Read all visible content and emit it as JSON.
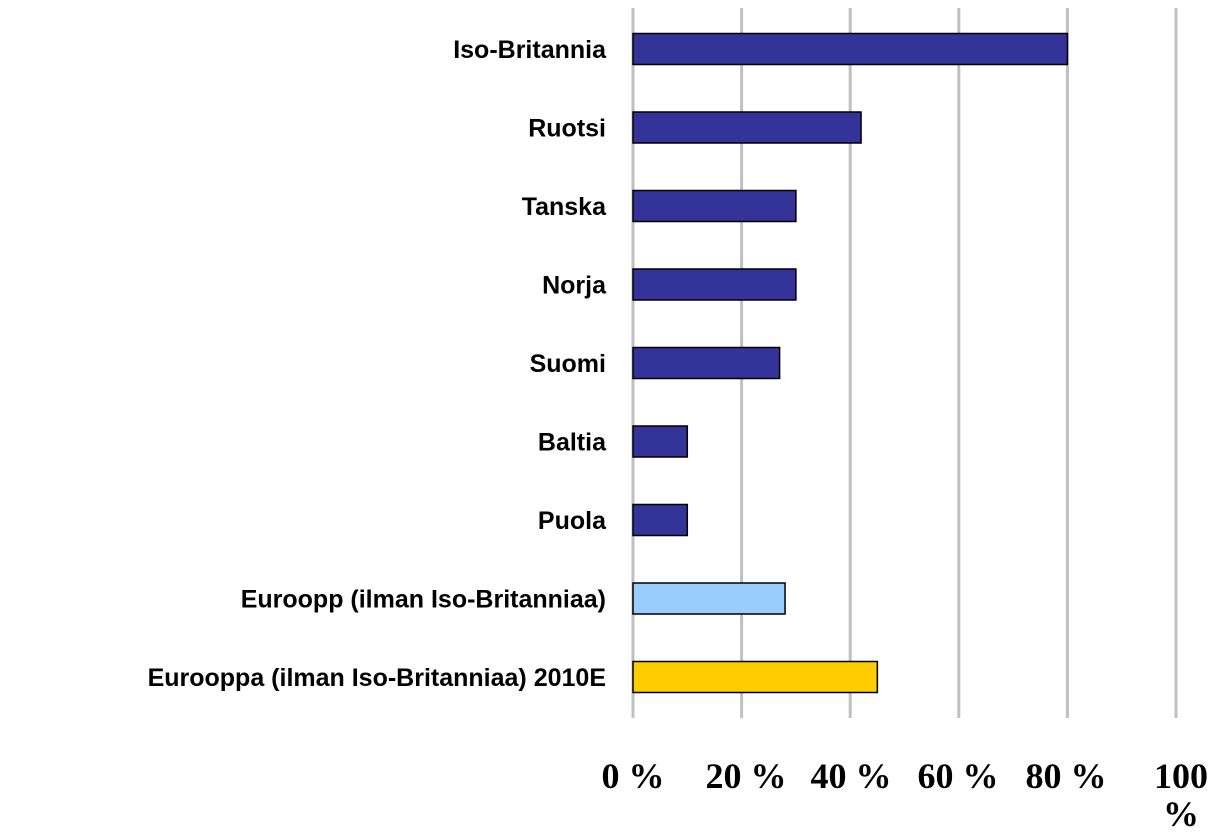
{
  "chart_data": {
    "type": "bar",
    "orientation": "horizontal",
    "title": "",
    "xlabel": "",
    "ylabel": "",
    "categories": [
      "Iso-Britannia",
      "Ruotsi",
      "Tanska",
      "Norja",
      "Suomi",
      "Baltia",
      "Puola",
      "Euroopp (ilman Iso-Britanniaa)",
      "Eurooppa (ilman Iso-Britanniaa) 2010E"
    ],
    "values": [
      80,
      42,
      30,
      30,
      27,
      10,
      10,
      28,
      45
    ],
    "bar_colors": [
      "#333399",
      "#333399",
      "#333399",
      "#333399",
      "#333399",
      "#333399",
      "#333399",
      "#99ccff",
      "#ffcc00"
    ],
    "xlim": [
      0,
      100
    ],
    "x_ticks": [
      0,
      20,
      40,
      60,
      80,
      100
    ],
    "x_tick_labels": [
      "0 %",
      "20 %",
      "40 %",
      "60 %",
      "80 %",
      "100 %"
    ],
    "grid": true,
    "legend": "none"
  }
}
